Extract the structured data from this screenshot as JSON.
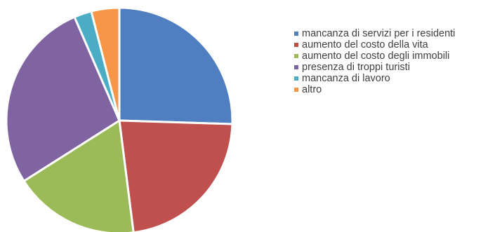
{
  "chart_data": {
    "type": "pie",
    "categories": [
      "mancanza di servizi per i residenti",
      "aumento del costo della vita",
      "aumento del costo degli immobili",
      "presenza di troppi turisti",
      "mancanza di lavoro",
      "altro"
    ],
    "values": [
      25.5,
      22.5,
      18.0,
      27.5,
      2.5,
      4.0
    ],
    "colors": [
      "#4f7fc1",
      "#c0504d",
      "#9bbb59",
      "#8064a2",
      "#4bacc6",
      "#f79646"
    ],
    "legend_position": "right",
    "start_angle_deg": 0,
    "direction": "clockwise"
  }
}
